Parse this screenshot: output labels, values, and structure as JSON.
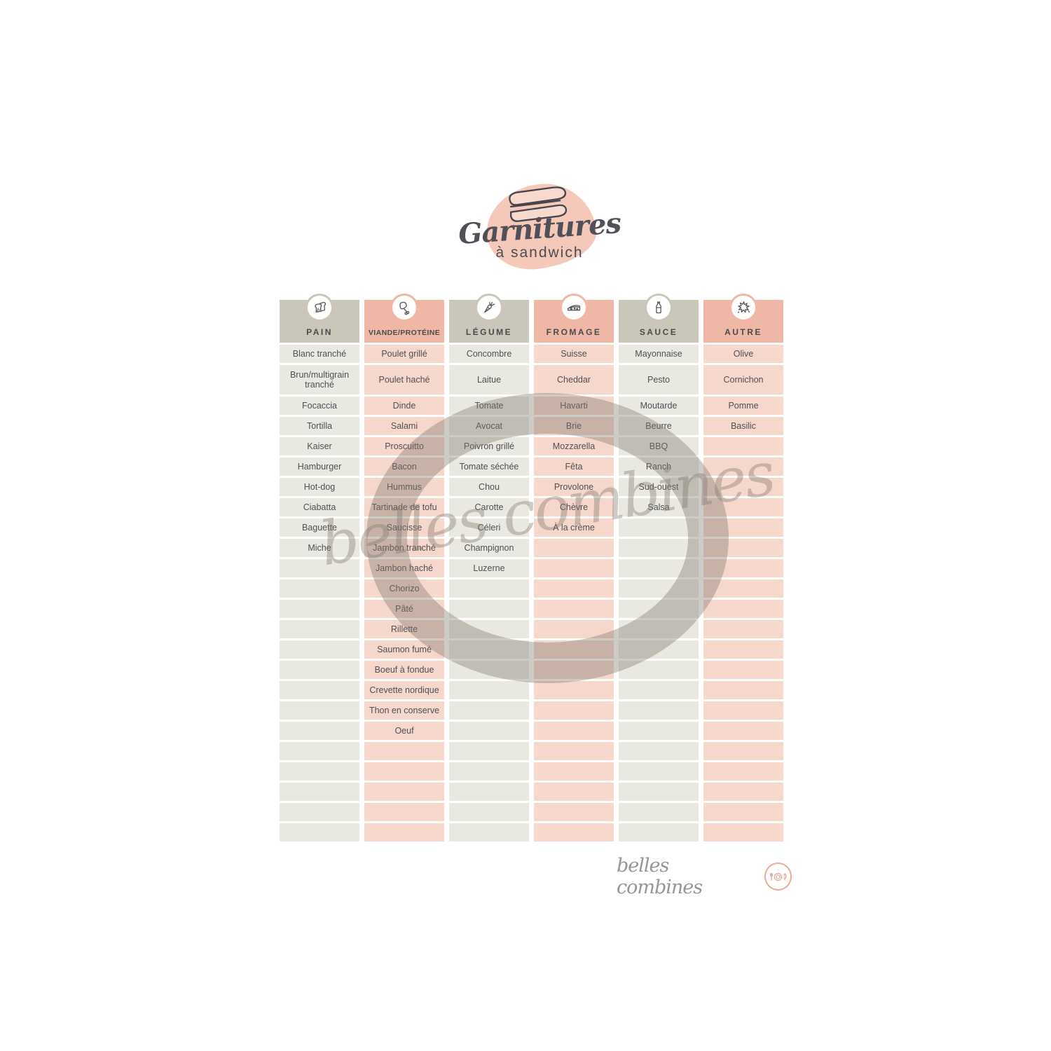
{
  "title": {
    "main": "Garnitures",
    "sub": "à sandwich"
  },
  "table": {
    "total_rows": 24
  },
  "columns": [
    {
      "id": "pain",
      "label": "PAIN",
      "icon": "bread-icon",
      "theme": "beige",
      "items": [
        "Blanc tranché",
        "Brun/multigrain tranché",
        "Focaccia",
        "Tortilla",
        "Kaiser",
        "Hamburger",
        "Hot-dog",
        "Ciabatta",
        "Baguette",
        "Miche"
      ]
    },
    {
      "id": "viande-proteine",
      "label": "VIANDE/PROTÉINE",
      "icon": "drumstick-icon",
      "theme": "pink",
      "items": [
        "Poulet grillé",
        "Poulet haché",
        "Dinde",
        "Salami",
        "Proscuitto",
        "Bacon",
        "Hummus",
        "Tartinade de tofu",
        "Saucisse",
        "Jambon tranché",
        "Jambon haché",
        "Chorizo",
        "Pâté",
        "Rillette",
        "Saumon fumé",
        "Boeuf à fondue",
        "Crevette nordique",
        "Thon en conserve",
        "Oeuf"
      ]
    },
    {
      "id": "legume",
      "label": "LÉGUME",
      "icon": "carrot-icon",
      "theme": "beige",
      "items": [
        "Concombre",
        "Laitue",
        "Tomate",
        "Avocat",
        "Poivron grillé",
        "Tomate séchée",
        "Chou",
        "Carotte",
        "Céleri",
        "Champignon",
        "Luzerne"
      ]
    },
    {
      "id": "fromage",
      "label": "FROMAGE",
      "icon": "cheese-icon",
      "theme": "pink",
      "items": [
        "Suisse",
        "Cheddar",
        "Havarti",
        "Brie",
        "Mozzarella",
        "Fêta",
        "Provolone",
        "Chèvre",
        "À la crème"
      ]
    },
    {
      "id": "sauce",
      "label": "SAUCE",
      "icon": "bottle-icon",
      "theme": "beige",
      "items": [
        "Mayonnaise",
        "Pesto",
        "Moutarde",
        "Beurre",
        "BBQ",
        "Ranch",
        "Sud-ouest",
        "Salsa"
      ]
    },
    {
      "id": "autre",
      "label": "AUTRE",
      "icon": "star-icon",
      "theme": "pink",
      "items": [
        "Olive",
        "Cornichon",
        "Pomme",
        "Basilic"
      ]
    }
  ],
  "watermark": {
    "text": "belles combines",
    "color": "rgba(125,119,109,0.38)"
  },
  "footer": {
    "brand": "belles combines",
    "text_color": "#969696",
    "logo_pink": "#e5ad9b"
  },
  "colors": {
    "header_beige": "#cac7ba",
    "header_pink": "#eeb7a6",
    "cell_beige": "#e9e8e1",
    "cell_pink": "#f5d7cb",
    "blob_pink": "#f4c9b9",
    "ink": "#4f4f55"
  }
}
